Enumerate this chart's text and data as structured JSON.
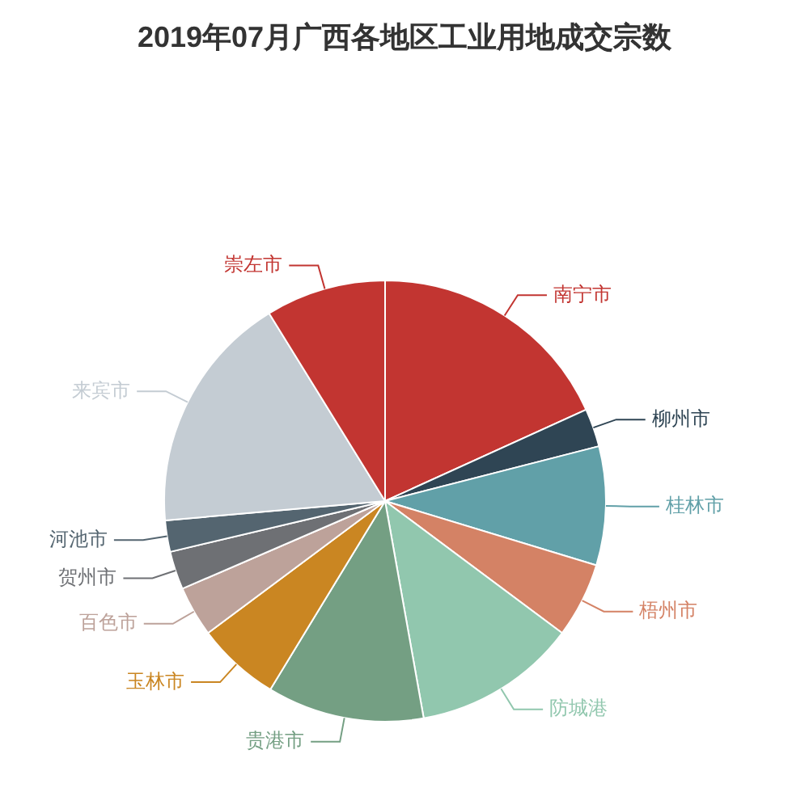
{
  "chart_data": {
    "type": "pie",
    "title": "2019年07月广西各地区工业用地成交宗数",
    "categories": [
      "南宁市",
      "柳州市",
      "桂林市",
      "梧州市",
      "防城港",
      "贵港市",
      "玉林市",
      "百色市",
      "贺州市",
      "河池市",
      "来宾市",
      "崇左市"
    ],
    "values": [
      18.2,
      2.8,
      8.7,
      5.5,
      12,
      11.5,
      6.1,
      3.7,
      2.8,
      2.3,
      17.6,
      8.8
    ],
    "colors": [
      "#c23531",
      "#2f4554",
      "#61a0a8",
      "#d48265",
      "#91c7ae",
      "#749f83",
      "#ca8622",
      "#bda29a",
      "#6e7074",
      "#546570",
      "#c4ccd3",
      "#c23531"
    ],
    "legend": false
  }
}
